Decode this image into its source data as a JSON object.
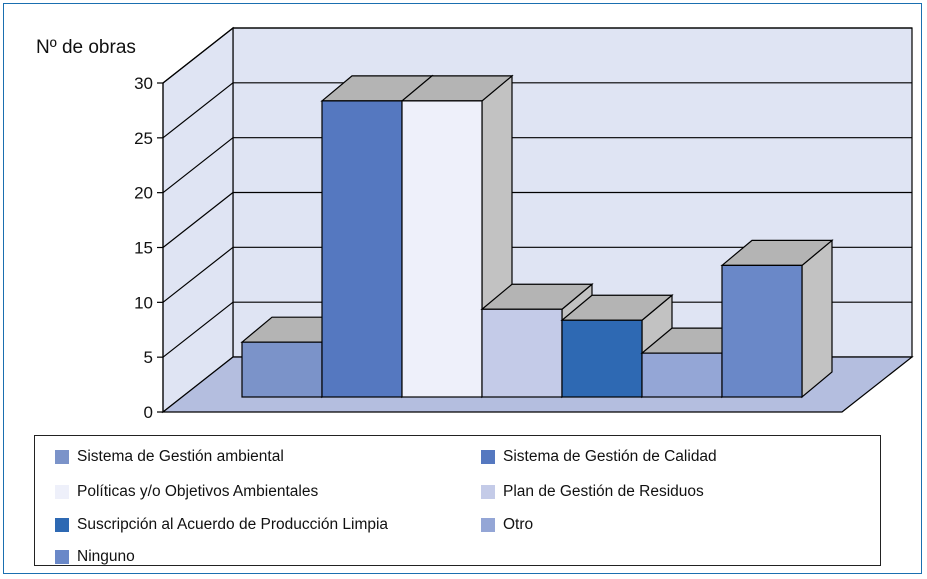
{
  "chart_data": {
    "type": "bar",
    "ylabel": "Nº de obras",
    "ylim": [
      0,
      30
    ],
    "yticks": [
      0,
      5,
      10,
      15,
      20,
      25,
      30
    ],
    "grid": true,
    "legend_position": "bottom",
    "series": [
      {
        "name": "Sistema de Gestión ambiental",
        "value": 5,
        "color": "#7b93c9"
      },
      {
        "name": "Sistema de Gestión de Calidad",
        "value": 27,
        "color": "#5578c0"
      },
      {
        "name": "Políticas y/o Objetivos Ambientales",
        "value": 27,
        "color": "#eef0fa"
      },
      {
        "name": "Plan de Gestión de Residuos",
        "value": 8,
        "color": "#c4cbe8"
      },
      {
        "name": "Suscripción al Acuerdo de Producción Limpia",
        "value": 7,
        "color": "#2e69b3"
      },
      {
        "name": "Otro",
        "value": 4,
        "color": "#94a6d6"
      },
      {
        "name": "Ninguno",
        "value": 12,
        "color": "#6a88c8"
      }
    ]
  },
  "colors": {
    "wall": "#dfe4f3",
    "floor": "#b4bedf",
    "bar_side": "#c2c2c2",
    "bar_top": "#b4b4b4",
    "frame": "#1a6fb0"
  }
}
